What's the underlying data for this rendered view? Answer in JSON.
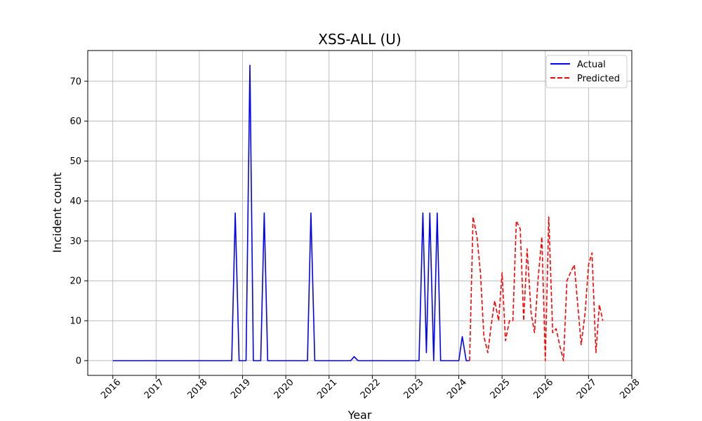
{
  "chart_data": {
    "type": "line",
    "title": "XSS-ALL (U)",
    "xlabel": "Year",
    "ylabel": "Incident count",
    "xlim": [
      2015.42,
      2028.0
    ],
    "ylim": [
      -3.7,
      77.7
    ],
    "x_ticks": [
      "2016",
      "2017",
      "2018",
      "2019",
      "2020",
      "2021",
      "2022",
      "2023",
      "2024",
      "2025",
      "2026",
      "2027",
      "2028"
    ],
    "y_ticks": [
      "0",
      "10",
      "20",
      "30",
      "40",
      "50",
      "60",
      "70"
    ],
    "grid": true,
    "legend_position": "top-right",
    "series": [
      {
        "name": "Actual",
        "color": "#0000ff",
        "style": "solid",
        "points": [
          [
            2016.0,
            0
          ],
          [
            2018.75,
            0
          ],
          [
            2018.83,
            37
          ],
          [
            2018.92,
            0
          ],
          [
            2019.08,
            0
          ],
          [
            2019.17,
            74
          ],
          [
            2019.25,
            0
          ],
          [
            2019.42,
            0
          ],
          [
            2019.5,
            37
          ],
          [
            2019.58,
            0
          ],
          [
            2020.5,
            0
          ],
          [
            2020.58,
            37
          ],
          [
            2020.67,
            0
          ],
          [
            2021.5,
            0
          ],
          [
            2021.58,
            1
          ],
          [
            2021.67,
            0
          ],
          [
            2023.08,
            0
          ],
          [
            2023.17,
            37
          ],
          [
            2023.25,
            2
          ],
          [
            2023.33,
            37
          ],
          [
            2023.42,
            0
          ],
          [
            2023.5,
            37
          ],
          [
            2023.58,
            0
          ],
          [
            2024.0,
            0
          ],
          [
            2024.08,
            6
          ],
          [
            2024.17,
            0
          ],
          [
            2024.25,
            0
          ]
        ]
      },
      {
        "name": "Predicted",
        "color": "#ff0000",
        "style": "dashed",
        "points": [
          [
            2024.25,
            0
          ],
          [
            2024.33,
            36
          ],
          [
            2024.42,
            31
          ],
          [
            2024.5,
            22
          ],
          [
            2024.58,
            6
          ],
          [
            2024.67,
            2
          ],
          [
            2024.75,
            9
          ],
          [
            2024.83,
            15
          ],
          [
            2024.92,
            10
          ],
          [
            2025.0,
            22
          ],
          [
            2025.08,
            5
          ],
          [
            2025.17,
            10
          ],
          [
            2025.25,
            10
          ],
          [
            2025.33,
            35
          ],
          [
            2025.42,
            33
          ],
          [
            2025.5,
            10
          ],
          [
            2025.58,
            28
          ],
          [
            2025.67,
            12
          ],
          [
            2025.75,
            7
          ],
          [
            2025.83,
            20
          ],
          [
            2025.92,
            31
          ],
          [
            2026.0,
            0
          ],
          [
            2026.08,
            36
          ],
          [
            2026.17,
            7
          ],
          [
            2026.25,
            8
          ],
          [
            2026.33,
            4
          ],
          [
            2026.42,
            0
          ],
          [
            2026.5,
            20
          ],
          [
            2026.58,
            22
          ],
          [
            2026.67,
            24
          ],
          [
            2026.75,
            14
          ],
          [
            2026.83,
            4
          ],
          [
            2026.92,
            12
          ],
          [
            2027.0,
            24
          ],
          [
            2027.08,
            27
          ],
          [
            2027.17,
            2
          ],
          [
            2027.25,
            14
          ],
          [
            2027.33,
            10
          ]
        ]
      }
    ]
  }
}
